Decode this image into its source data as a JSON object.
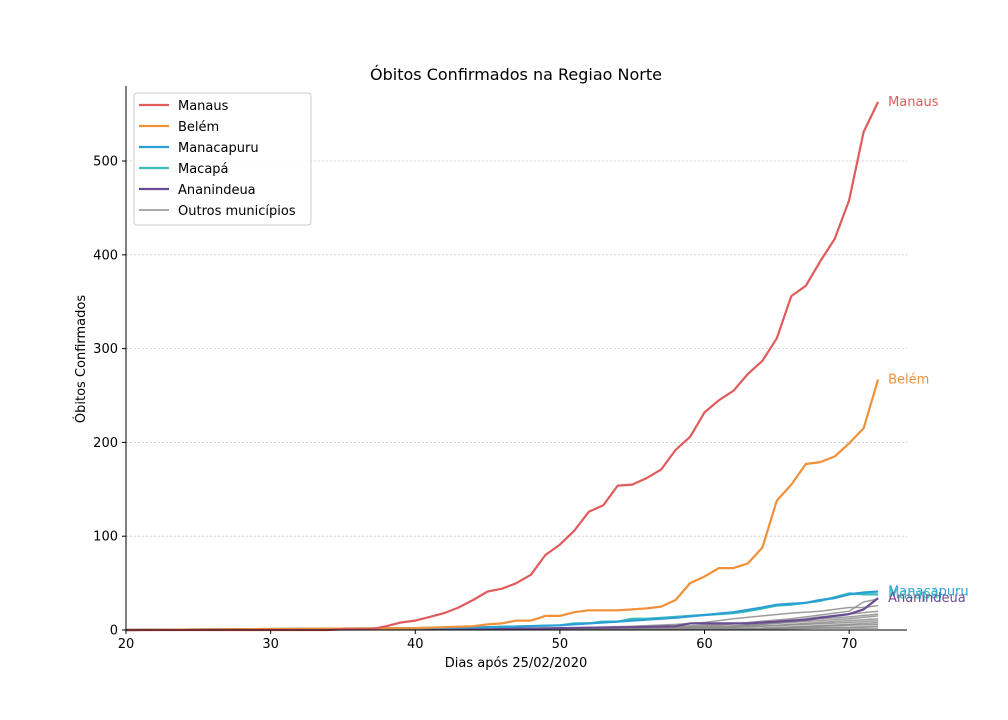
{
  "chart_data": {
    "type": "line",
    "title": "Óbitos Confirmados na Regiao Norte",
    "xlabel": "Dias após 25/02/2020",
    "ylabel": "Óbitos Confirmados",
    "xlim": [
      20,
      74
    ],
    "ylim": [
      0,
      580
    ],
    "xticks": [
      20,
      30,
      40,
      50,
      60,
      70
    ],
    "yticks": [
      0,
      100,
      200,
      300,
      400,
      500
    ],
    "grid": "horizontal dashed",
    "legend_position": "top-left",
    "series": [
      {
        "name": "Manaus",
        "color": "#e05c5c",
        "end_label": "Manaus",
        "x": [
          20,
          25,
          30,
          34,
          35,
          36,
          37,
          38,
          39,
          40,
          41,
          42,
          43,
          44,
          45,
          46,
          47,
          48,
          49,
          50,
          51,
          52,
          53,
          54,
          55,
          56,
          57,
          58,
          59,
          60,
          61,
          62,
          63,
          64,
          65,
          66,
          67,
          68,
          69,
          70,
          71,
          72
        ],
        "y": [
          0,
          0,
          0,
          0,
          1,
          1,
          1,
          4,
          8,
          10,
          14,
          18,
          24,
          32,
          41,
          44,
          50,
          59,
          80,
          91,
          106,
          126,
          133,
          154,
          155,
          162,
          171,
          192,
          206,
          232,
          245,
          255,
          273,
          287,
          311,
          356,
          367,
          393,
          417,
          458,
          531,
          563
        ]
      },
      {
        "name": "Belém",
        "color": "#f0913a",
        "end_label": "Belém",
        "x": [
          20,
          40,
          42,
          44,
          45,
          46,
          47,
          48,
          49,
          50,
          51,
          52,
          53,
          54,
          55,
          56,
          57,
          58,
          59,
          60,
          61,
          62,
          63,
          64,
          65,
          66,
          67,
          68,
          69,
          70,
          71,
          72
        ],
        "y": [
          0,
          2,
          3,
          4,
          6,
          7,
          10,
          10,
          15,
          15,
          19,
          21,
          21,
          21,
          22,
          23,
          25,
          32,
          50,
          57,
          66,
          66,
          71,
          88,
          138,
          155,
          177,
          179,
          185,
          199,
          215,
          267
        ]
      },
      {
        "name": "Manacapuru",
        "color": "#2a9fd6",
        "end_label": "Manacapuru",
        "x": [
          20,
          40,
          45,
          50,
          52,
          54,
          56,
          58,
          60,
          62,
          64,
          65,
          66,
          67,
          68,
          69,
          70,
          71,
          72
        ],
        "y": [
          0,
          2,
          3,
          5,
          7,
          9,
          11,
          13,
          16,
          19,
          24,
          27,
          28,
          29,
          32,
          34,
          38,
          40,
          41
        ]
      },
      {
        "name": "Macapá",
        "color": "#3bbdb5",
        "end_label": "Macapá",
        "x": [
          20,
          40,
          45,
          50,
          51,
          52,
          53,
          54,
          55,
          56,
          57,
          58,
          59,
          60,
          61,
          62,
          63,
          64,
          65,
          66,
          67,
          68,
          69,
          70,
          71,
          72
        ],
        "y": [
          0,
          2,
          3,
          5,
          7,
          7,
          9,
          9,
          12,
          12,
          13,
          14,
          15,
          16,
          17,
          18,
          20,
          23,
          26,
          27,
          29,
          31,
          35,
          39,
          38,
          38
        ]
      },
      {
        "name": "Ananindeua",
        "color": "#6a4c93",
        "end_label": "Ananindeua",
        "x": [
          20,
          45,
          50,
          55,
          58,
          59,
          60,
          61,
          62,
          63,
          64,
          65,
          66,
          67,
          68,
          69,
          70,
          71,
          72
        ],
        "y": [
          0,
          1,
          2,
          3,
          4,
          7,
          7,
          7,
          7,
          7,
          8,
          9,
          10,
          11,
          13,
          15,
          17,
          22,
          34
        ]
      },
      {
        "name": "Outros municípios",
        "color": "#8c8c8c",
        "lines": [
          {
            "x": [
              20,
              50,
              55,
              58,
              60,
              62,
              64,
              66,
              68,
              70,
              71,
              72
            ],
            "y": [
              0,
              2,
              4,
              6,
              8,
              12,
              15,
              18,
              20,
              24,
              24,
              26
            ]
          },
          {
            "x": [
              20,
              50,
              55,
              60,
              63,
              66,
              68,
              70,
              71,
              72
            ],
            "y": [
              0,
              1,
              2,
              4,
              8,
              12,
              16,
              20,
              30,
              33
            ]
          },
          {
            "x": [
              20,
              55,
              60,
              63,
              66,
              68,
              70,
              72
            ],
            "y": [
              0,
              2,
              5,
              7,
              10,
              14,
              17,
              20
            ]
          },
          {
            "x": [
              20,
              55,
              60,
              64,
              66,
              68,
              70,
              72
            ],
            "y": [
              0,
              1,
              3,
              6,
              9,
              12,
              14,
              17
            ]
          },
          {
            "x": [
              20,
              58,
              62,
              65,
              68,
              70,
              72
            ],
            "y": [
              0,
              2,
              4,
              7,
              10,
              12,
              15
            ]
          },
          {
            "x": [
              20,
              58,
              62,
              65,
              68,
              70,
              72
            ],
            "y": [
              0,
              1,
              3,
              5,
              8,
              10,
              12
            ]
          },
          {
            "x": [
              20,
              60,
              64,
              67,
              70,
              72
            ],
            "y": [
              0,
              2,
              4,
              6,
              8,
              10
            ]
          },
          {
            "x": [
              20,
              60,
              64,
              67,
              70,
              72
            ],
            "y": [
              0,
              1,
              2,
              4,
              6,
              8
            ]
          },
          {
            "x": [
              20,
              62,
              66,
              70,
              72
            ],
            "y": [
              0,
              1,
              3,
              5,
              6
            ]
          },
          {
            "x": [
              20,
              62,
              66,
              70,
              72
            ],
            "y": [
              0,
              1,
              2,
              3,
              4
            ]
          },
          {
            "x": [
              20,
              64,
              68,
              72
            ],
            "y": [
              0,
              1,
              2,
              2
            ]
          }
        ]
      }
    ]
  }
}
